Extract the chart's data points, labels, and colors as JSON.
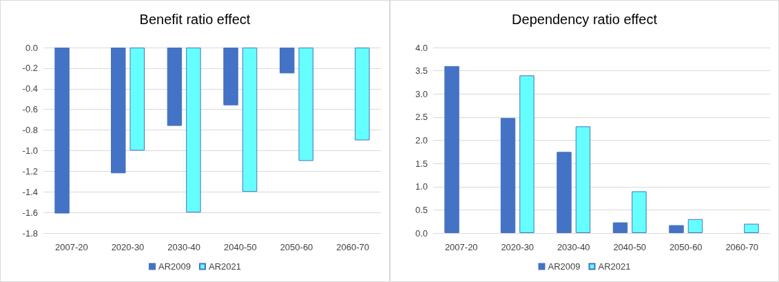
{
  "chart_data": [
    {
      "type": "bar",
      "title": "Benefit ratio effect",
      "categories": [
        "2007-20",
        "2020-30",
        "2030-40",
        "2040-50",
        "2050-60",
        "2060-70"
      ],
      "series": [
        {
          "name": "AR2009",
          "color": "#4472c4",
          "values": [
            -1.61,
            -1.22,
            -0.76,
            -0.56,
            -0.25,
            null
          ]
        },
        {
          "name": "AR2021",
          "color": "#66ffff",
          "values": [
            null,
            -1.0,
            -1.6,
            -1.4,
            -1.1,
            -0.9
          ]
        }
      ],
      "ylim": [
        -1.8,
        0
      ],
      "yticks": [
        {
          "value": -1.8,
          "label": "-1.8"
        },
        {
          "value": -1.6,
          "label": "-1.6"
        },
        {
          "value": -1.4,
          "label": "-1.4"
        },
        {
          "value": -1.2,
          "label": "-1.2"
        },
        {
          "value": -1.0,
          "label": "-1.0"
        },
        {
          "value": -0.8,
          "label": "-0.8"
        },
        {
          "value": -0.6,
          "label": "-0.6"
        },
        {
          "value": -0.4,
          "label": "-0.4"
        },
        {
          "value": -0.2,
          "label": "-0.2"
        },
        {
          "value": 0,
          "label": "0.0"
        }
      ],
      "grid": "y",
      "legend": "bottom"
    },
    {
      "type": "bar",
      "title": "Dependency ratio effect",
      "categories": [
        "2007-20",
        "2020-30",
        "2030-40",
        "2040-50",
        "2050-60",
        "2060-70"
      ],
      "series": [
        {
          "name": "AR2009",
          "color": "#4472c4",
          "values": [
            3.6,
            2.48,
            1.75,
            0.23,
            0.17,
            null
          ]
        },
        {
          "name": "AR2021",
          "color": "#66ffff",
          "values": [
            null,
            3.4,
            2.3,
            0.9,
            0.3,
            0.2
          ]
        }
      ],
      "ylim": [
        0,
        4
      ],
      "yticks": [
        {
          "value": 0,
          "label": "0.0"
        },
        {
          "value": 0.5,
          "label": "0.5"
        },
        {
          "value": 1,
          "label": "1.0"
        },
        {
          "value": 1.5,
          "label": "1.5"
        },
        {
          "value": 2,
          "label": "2.0"
        },
        {
          "value": 2.5,
          "label": "2.5"
        },
        {
          "value": 3,
          "label": "3.0"
        },
        {
          "value": 3.5,
          "label": "3.5"
        },
        {
          "value": 4,
          "label": "4.0"
        }
      ],
      "grid": "y",
      "legend": "bottom"
    }
  ]
}
